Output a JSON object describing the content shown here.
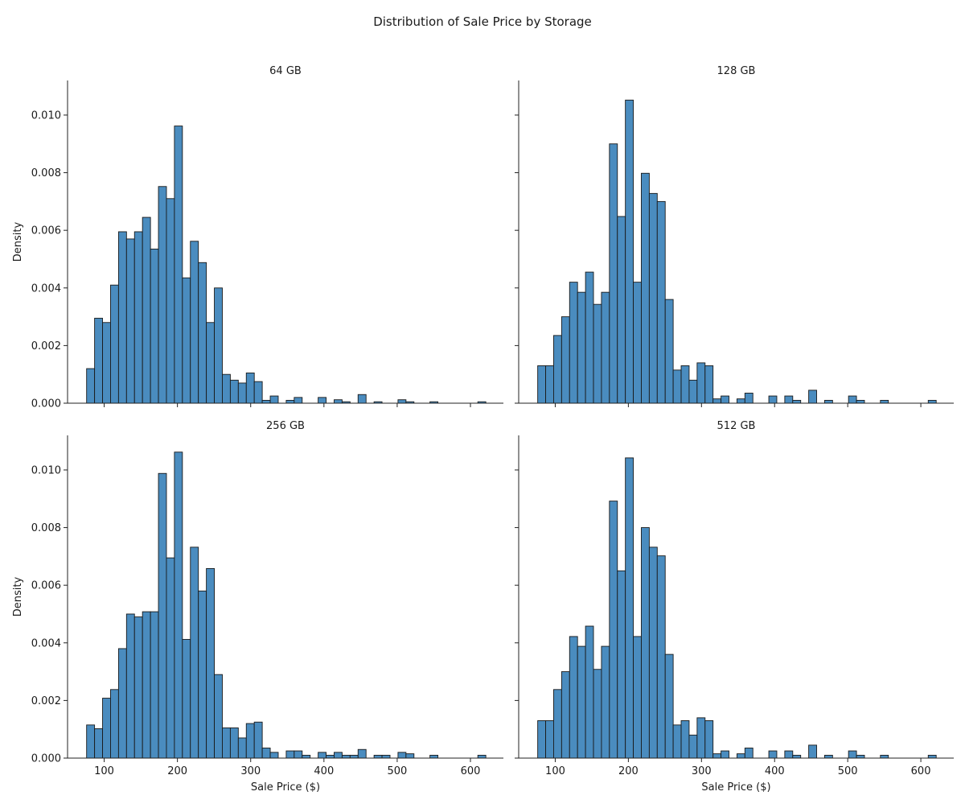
{
  "chart_data": {
    "type": "histogram",
    "title": "Distribution of Sale Price by Storage",
    "xlabel": "Sale Price ($)",
    "ylabel": "Density",
    "xlim": [
      50,
      645
    ],
    "ylim": [
      0,
      0.0112
    ],
    "x_ticks": [
      "100",
      "200",
      "300",
      "400",
      "500",
      "600"
    ],
    "x_tick_values": [
      100,
      200,
      300,
      400,
      500,
      600
    ],
    "y_ticks": [
      "0.000",
      "0.002",
      "0.004",
      "0.006",
      "0.008",
      "0.010"
    ],
    "y_tick_values": [
      0,
      0.002,
      0.004,
      0.006,
      0.008,
      0.01
    ],
    "bin_start": 76,
    "bin_width": 10.9,
    "bar_color": "#4a8cbf",
    "edge_color": "#1a1a1a",
    "panels": [
      {
        "name": "64 GB",
        "values": [
          0.0012,
          0.00295,
          0.0028,
          0.0041,
          0.00595,
          0.0057,
          0.00595,
          0.00645,
          0.00535,
          0.00752,
          0.0071,
          0.00962,
          0.00435,
          0.00562,
          0.00488,
          0.0028,
          0.004,
          0.001,
          0.0008,
          0.0007,
          0.00105,
          0.00075,
          0.0001,
          0.00025,
          0,
          0.0001,
          0.0002,
          0,
          0,
          0.0002,
          0,
          0.00012,
          5e-05,
          0,
          0.0003,
          0,
          5e-05,
          0,
          0,
          0.00012,
          5e-05,
          0,
          0,
          5e-05,
          0,
          0,
          0,
          0,
          0,
          5e-05
        ]
      },
      {
        "name": "128 GB",
        "values": [
          0.0013,
          0.0013,
          0.00235,
          0.003,
          0.0042,
          0.00385,
          0.00455,
          0.00343,
          0.00385,
          0.009,
          0.00648,
          0.01052,
          0.0042,
          0.00798,
          0.00728,
          0.007,
          0.0036,
          0.00115,
          0.0013,
          0.0008,
          0.0014,
          0.0013,
          0.00015,
          0.00025,
          0,
          0.00015,
          0.00035,
          0,
          0,
          0.00025,
          0,
          0.00025,
          0.0001,
          0,
          0.00045,
          0,
          0.0001,
          0,
          0,
          0.00025,
          0.0001,
          0,
          0,
          0.0001,
          0,
          0,
          0,
          0,
          0,
          0.0001
        ]
      },
      {
        "name": "256 GB",
        "values": [
          0.00115,
          0.00102,
          0.00208,
          0.00238,
          0.0038,
          0.005,
          0.0049,
          0.00508,
          0.00508,
          0.00988,
          0.00695,
          0.01062,
          0.00412,
          0.00732,
          0.0058,
          0.00658,
          0.0029,
          0.00105,
          0.00105,
          0.0007,
          0.0012,
          0.00125,
          0.00035,
          0.0002,
          0,
          0.00025,
          0.00025,
          0.0001,
          0,
          0.0002,
          0.0001,
          0.0002,
          0.0001,
          0.0001,
          0.0003,
          0,
          0.0001,
          0.0001,
          0,
          0.0002,
          0.00015,
          0,
          0,
          0.0001,
          0,
          0,
          0,
          0,
          0,
          0.0001
        ]
      },
      {
        "name": "512 GB",
        "values": [
          0.0013,
          0.0013,
          0.00238,
          0.003,
          0.00422,
          0.00388,
          0.00458,
          0.00308,
          0.00388,
          0.00892,
          0.0065,
          0.01042,
          0.00422,
          0.008,
          0.00732,
          0.00702,
          0.0036,
          0.00115,
          0.0013,
          0.0008,
          0.0014,
          0.0013,
          0.00015,
          0.00025,
          0,
          0.00015,
          0.00035,
          0,
          0,
          0.00025,
          0,
          0.00025,
          0.0001,
          0,
          0.00045,
          0,
          0.0001,
          0,
          0,
          0.00025,
          0.0001,
          0,
          0,
          0.0001,
          0,
          0,
          0,
          0,
          0,
          0.0001
        ]
      }
    ]
  }
}
